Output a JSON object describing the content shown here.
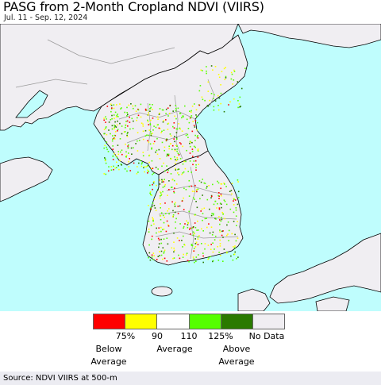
{
  "title": "PASG from 2-Month Cropland NDVI (VIIRS)",
  "subtitle": "Jul. 11 - Sep. 12, 2024",
  "colors": {
    "sea": "#bffdfd",
    "land": "#f0eef2",
    "border": "#9a9a9a",
    "coast": "#000000"
  },
  "legend": {
    "swatches": [
      {
        "color": "#ff0000",
        "name": "below-75"
      },
      {
        "color": "#ffff00",
        "name": "75-90"
      },
      {
        "color": "#ffffff",
        "name": "90-110"
      },
      {
        "color": "#55ff00",
        "name": "110-125"
      },
      {
        "color": "#2a7a00",
        "name": "above-125"
      },
      {
        "color": "#f0eef2",
        "name": "no-data"
      }
    ],
    "ticks": [
      "75%",
      "90",
      "110",
      "125%",
      "No Data"
    ],
    "below_label": "Below Average",
    "average_label": "Average",
    "above_label": "Above Average"
  },
  "footer": "Source: NDVI VIIRS at 500-m"
}
